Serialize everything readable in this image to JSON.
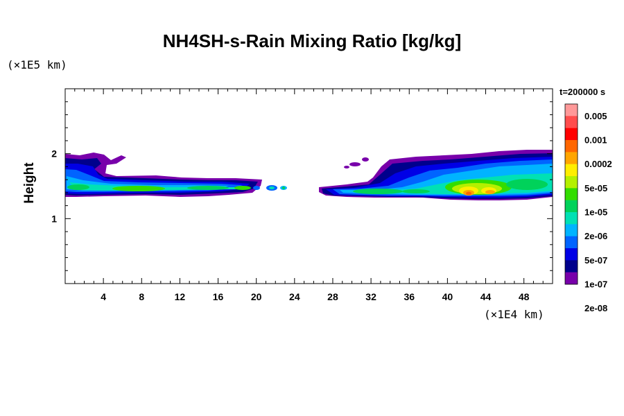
{
  "chart_data": {
    "type": "heatmap",
    "title": "NH4SH-s-Rain Mixing Ratio [kg/kg]",
    "ylabel": "Height",
    "y_unit": "(×1E5 km)",
    "x_unit": "(×1E4 km)",
    "time_label": "t=200000 s",
    "xlim": [
      0,
      51
    ],
    "ylim": [
      0,
      3
    ],
    "x_ticks": [
      4,
      8,
      12,
      16,
      20,
      24,
      28,
      32,
      36,
      40,
      44,
      48
    ],
    "y_ticks": [
      1,
      2
    ],
    "colorbar": {
      "labels": [
        "0.005",
        "0.001",
        "0.0002",
        "5e-05",
        "1e-05",
        "2e-06",
        "5e-07",
        "1e-07",
        "2e-08"
      ],
      "colors": [
        "#ff9999",
        "#ff4d4d",
        "#ff0000",
        "#ff6600",
        "#ffa500",
        "#ffee00",
        "#b4f000",
        "#33dd00",
        "#00d25a",
        "#00e1b4",
        "#00b4ff",
        "#0064ff",
        "#0000e6",
        "#00008c",
        "#7800aa"
      ]
    }
  }
}
